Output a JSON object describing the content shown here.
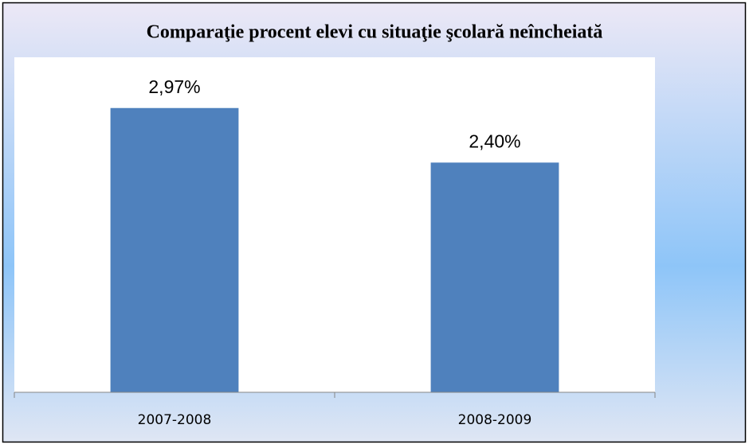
{
  "chart_data": {
    "type": "bar",
    "title": "Comparaţie procent elevi cu situaţie şcolară neîncheiată",
    "categories": [
      "2007-2008",
      "2008-2009"
    ],
    "values": [
      2.97,
      2.4
    ],
    "value_labels": [
      "2,97%",
      "2,40%"
    ],
    "color": "#4f81bd",
    "ylim": [
      0,
      3.5
    ]
  }
}
